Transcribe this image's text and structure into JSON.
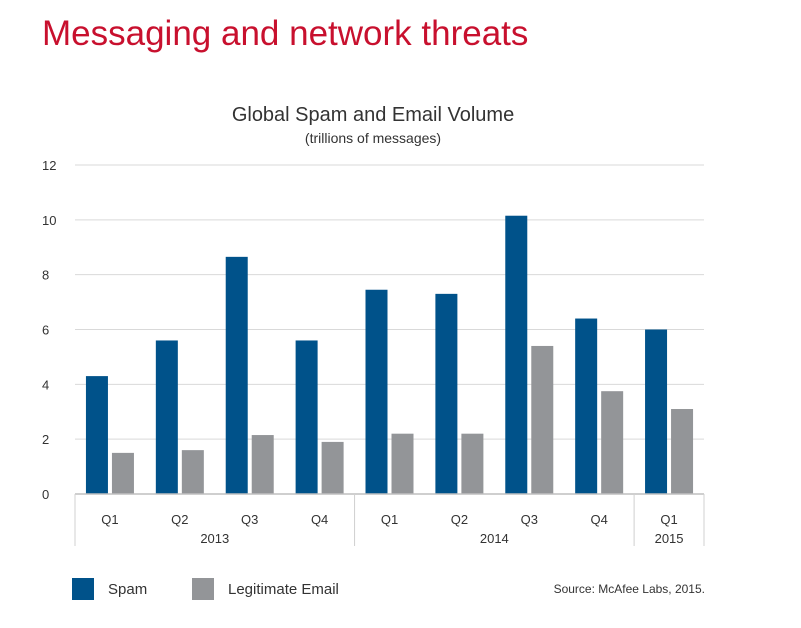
{
  "page_title": "Messaging and network threats",
  "source": "Source: McAfee Labs, 2015.",
  "colors": {
    "title": "#c8102e",
    "spam": "#00528a",
    "legitimate": "#939598",
    "grid": "#d9d9d9",
    "text": "#333333"
  },
  "chart_data": {
    "type": "bar",
    "title": "Global Spam and Email Volume",
    "subtitle": "(trillions of messages)",
    "xlabel": "",
    "ylabel": "",
    "ylim": [
      0,
      12
    ],
    "yticks": [
      "0",
      "2",
      "4",
      "6",
      "8",
      "10",
      "12"
    ],
    "grid": true,
    "legend_position": "bottom-left",
    "categories": [
      "Q1",
      "Q2",
      "Q3",
      "Q4",
      "Q1",
      "Q2",
      "Q3",
      "Q4",
      "Q1"
    ],
    "groups": [
      {
        "label": "2013",
        "count": 4
      },
      {
        "label": "2014",
        "count": 4
      },
      {
        "label": "2015",
        "count": 1
      }
    ],
    "series": [
      {
        "name": "Spam",
        "values": [
          4.3,
          5.6,
          8.65,
          5.6,
          7.45,
          7.3,
          10.15,
          6.4,
          6.0
        ]
      },
      {
        "name": "Legitimate Email",
        "values": [
          1.5,
          1.6,
          2.15,
          1.9,
          2.2,
          2.2,
          5.4,
          3.75,
          3.1
        ]
      }
    ]
  }
}
